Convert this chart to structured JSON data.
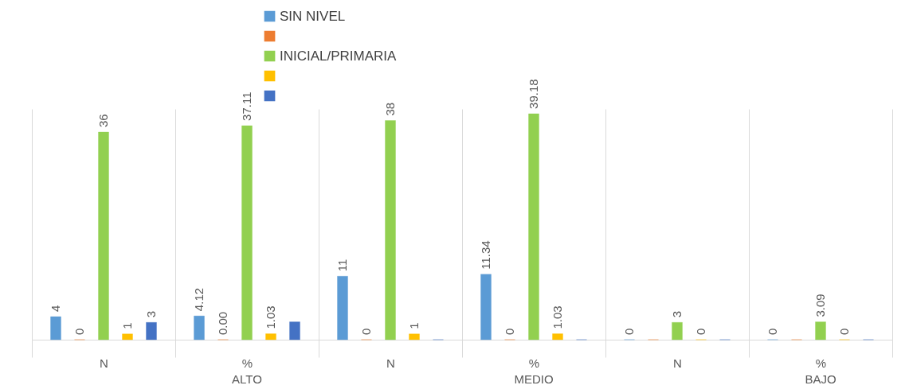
{
  "chart_data": {
    "type": "bar",
    "categories": [
      "N",
      "%",
      "N",
      "%",
      "N",
      "%"
    ],
    "annotations": [
      "ALTO",
      "MEDIO",
      "BAJO"
    ],
    "series": [
      {
        "name": "SIN NIVEL",
        "color": "#5b9bd5",
        "values": [
          4,
          4.12,
          11,
          11.34,
          0,
          0
        ],
        "value_labels": [
          "4",
          "4.12",
          "11",
          "11.34",
          "0",
          "0"
        ]
      },
      {
        "color": "#ed7d31",
        "values": [
          0,
          0,
          0,
          0,
          0,
          0
        ],
        "value_labels": [
          "0",
          "0.00",
          "0",
          "0",
          null,
          null
        ]
      },
      {
        "name": "INICIAL/PRIMARIA",
        "color": "#92d050",
        "values": [
          36,
          37.11,
          38,
          39.18,
          3,
          3.09
        ],
        "value_labels": [
          "36",
          "37.11",
          "38",
          "39.18",
          "3",
          "3.09"
        ]
      },
      {
        "color": "#ffc000",
        "values": [
          1,
          1.03,
          1,
          1.03,
          0,
          0
        ],
        "value_labels": [
          "1",
          "1.03",
          "1",
          "1.03",
          "0",
          "0"
        ]
      },
      {
        "color": "#4472c4",
        "values": [
          3,
          3.09,
          0,
          0,
          0,
          0
        ],
        "value_labels": [
          "3",
          null,
          null,
          null,
          null,
          null
        ]
      }
    ],
    "grid": "x",
    "legend": "top"
  }
}
